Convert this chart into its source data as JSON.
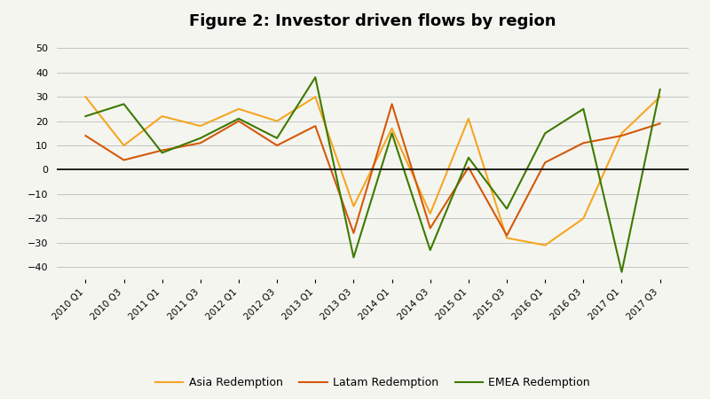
{
  "title": "Figure 2: Investor driven flows by region",
  "x_labels": [
    "2010 Q1",
    "2010 Q3",
    "2011 Q1",
    "2011 Q3",
    "2012 Q1",
    "2012 Q3",
    "2013 Q1",
    "2013 Q3",
    "2014 Q1",
    "2014 Q3",
    "2015 Q1",
    "2015 Q3",
    "2016 Q1",
    "2016 Q3",
    "2017 Q1",
    "2017 Q3"
  ],
  "asia": [
    30,
    10,
    22,
    18,
    25,
    20,
    30,
    -15,
    17,
    -18,
    21,
    -28,
    -31,
    -20,
    15,
    30
  ],
  "latam": [
    14,
    4,
    8,
    11,
    20,
    10,
    18,
    -26,
    27,
    -24,
    1,
    -27,
    3,
    11,
    14,
    19
  ],
  "emea": [
    22,
    27,
    7,
    13,
    21,
    13,
    38,
    -36,
    15,
    -33,
    5,
    -16,
    15,
    25,
    -42,
    33
  ],
  "asia_color": "#F5A623",
  "latam_color": "#D4590A",
  "emea_color": "#3D7A00",
  "ylim": [
    -45,
    55
  ],
  "yticks": [
    -40,
    -30,
    -20,
    -10,
    0,
    10,
    20,
    30,
    40,
    50
  ],
  "background_color": "#F5F5F0",
  "grid_color": "#BBBBBB",
  "zero_line_color": "#000000",
  "title_fontsize": 13,
  "legend_labels": [
    "Asia Redemption",
    "Latam Redemption",
    "EMEA Redemption"
  ]
}
